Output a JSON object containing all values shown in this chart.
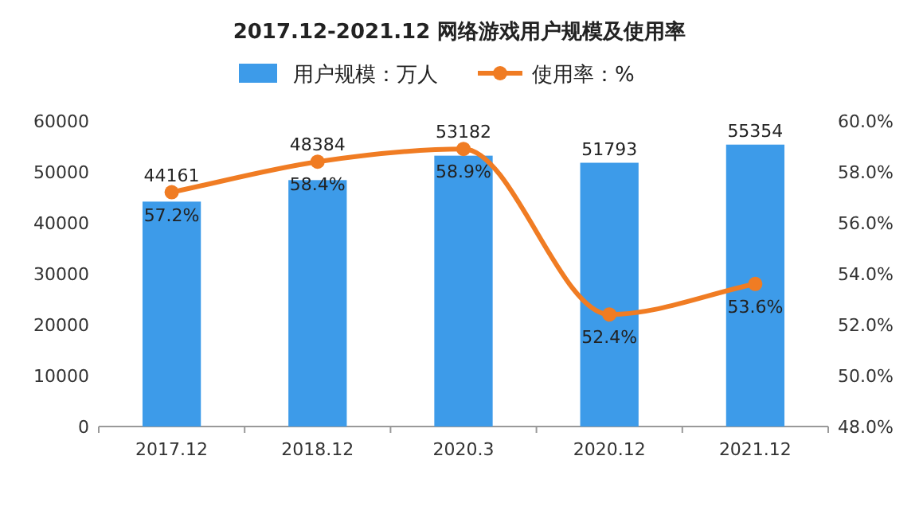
{
  "chart_data": {
    "type": "bar",
    "title": "2017.12-2021.12 网络游戏用户规模及使用率",
    "categories": [
      "2017.12",
      "2018.12",
      "2020.3",
      "2020.12",
      "2021.12"
    ],
    "series": [
      {
        "name": "用户规模：万人",
        "type": "bar",
        "color": "#3d9be9",
        "values": [
          44161,
          48384,
          53182,
          51793,
          55354
        ]
      },
      {
        "name": "使用率：%",
        "type": "line",
        "axis": "y2",
        "color": "#f07c23",
        "values": [
          57.2,
          58.4,
          58.9,
          52.4,
          53.6
        ],
        "value_labels": [
          "57.2%",
          "58.4%",
          "58.9%",
          "52.4%",
          "53.6%"
        ]
      }
    ],
    "data_labels": true,
    "ylim": [
      0,
      60000
    ],
    "yticks": [
      0,
      10000,
      20000,
      30000,
      40000,
      50000,
      60000
    ],
    "y2lim": [
      48,
      60
    ],
    "y2ticks": [
      {
        "value": 48,
        "label": "48.0%"
      },
      {
        "value": 50,
        "label": "50.0%"
      },
      {
        "value": 52,
        "label": "52.0%"
      },
      {
        "value": 54,
        "label": "54.0%"
      },
      {
        "value": 56,
        "label": "56.0%"
      },
      {
        "value": 58,
        "label": "58.0%"
      },
      {
        "value": 60,
        "label": "60.0%"
      }
    ],
    "marker": "circle",
    "line_style": "solid",
    "grid": false,
    "legend": "top"
  }
}
